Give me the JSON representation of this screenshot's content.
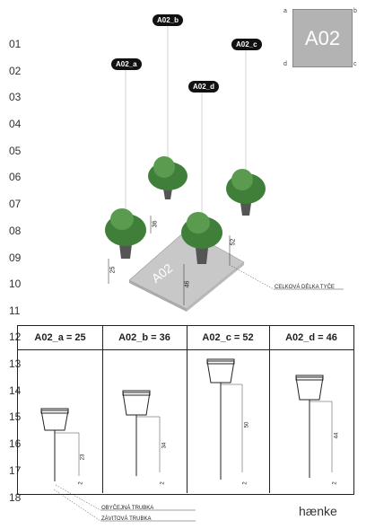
{
  "ruler": [
    "01",
    "02",
    "03",
    "04",
    "05",
    "06",
    "07",
    "08",
    "09",
    "10",
    "11",
    "12",
    "13",
    "14",
    "15",
    "16",
    "17",
    "18"
  ],
  "tags": {
    "a": "A02_a",
    "b": "A02_b",
    "c": "A02_c",
    "d": "A02_d"
  },
  "code": "A02",
  "corners": {
    "a": "a",
    "b": "b",
    "c": "c",
    "d": "d"
  },
  "iso_dims": {
    "a": "25",
    "b": "36",
    "c": "52",
    "d": "46"
  },
  "rod_label": "CELKOVÁ DÉLKA TYČE",
  "table_headers": [
    "A02_a = 25",
    "A02_b = 36",
    "A02_c = 52",
    "A02_d = 46"
  ],
  "col_dims": [
    {
      "rod": "23",
      "thread": "2"
    },
    {
      "rod": "34",
      "thread": "2"
    },
    {
      "rod": "50",
      "thread": "2"
    },
    {
      "rod": "44",
      "thread": "2"
    }
  ],
  "legend": {
    "tube": "OBYČEJNÁ TRUBKA",
    "thread": "ZÁVITOVÁ TRUBKA"
  },
  "brand": "hænke"
}
